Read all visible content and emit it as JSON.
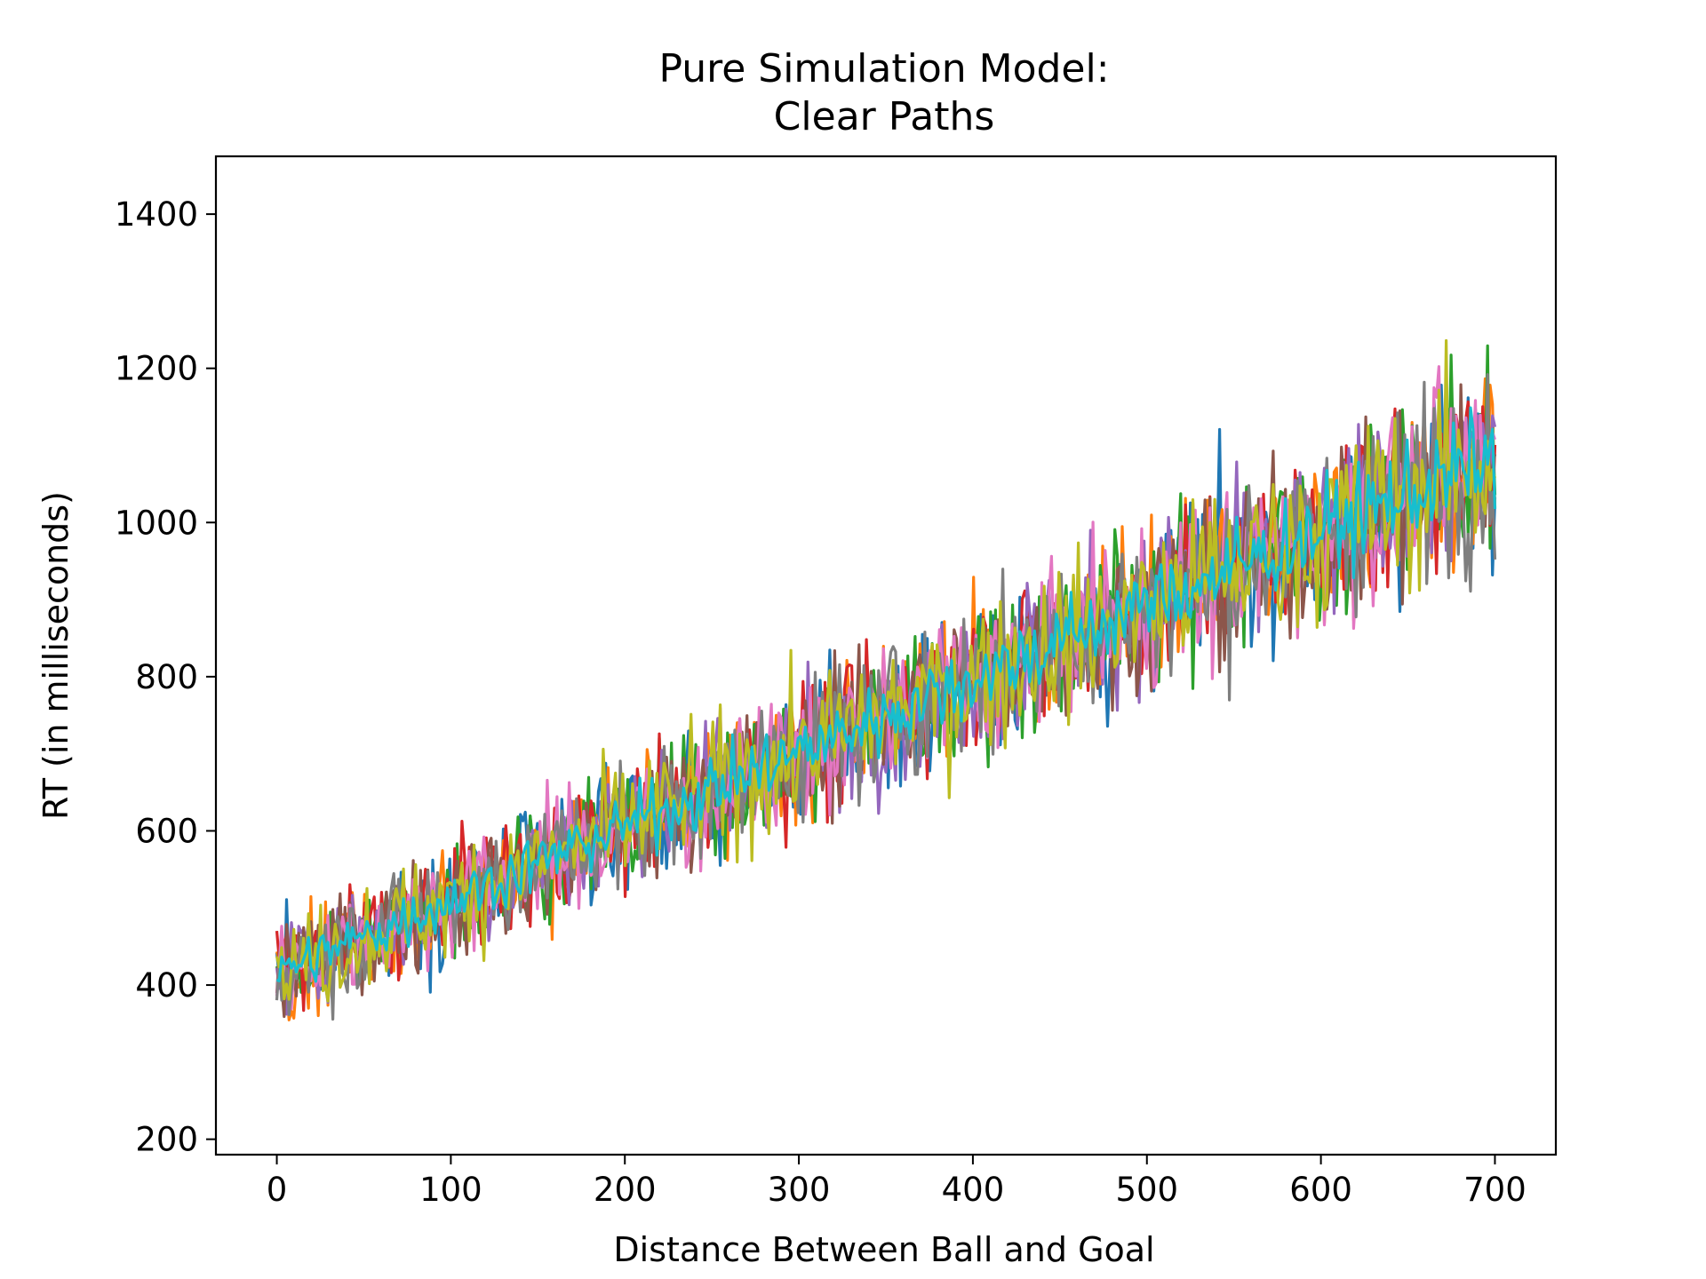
{
  "chart_data": {
    "type": "line",
    "title": "Pure Simulation Model:",
    "subtitle": "Clear Paths",
    "xlabel": "Distance Between Ball and Goal",
    "ylabel": "RT (in milliseconds)",
    "xlim": [
      -35,
      735
    ],
    "ylim": [
      180,
      1475
    ],
    "x_ticks": [
      0,
      100,
      200,
      300,
      400,
      500,
      600,
      700
    ],
    "y_ticks": [
      200,
      400,
      600,
      800,
      1000,
      1200,
      1400
    ],
    "x_range": [
      0,
      700
    ],
    "grid": false,
    "legend": "none",
    "series_colors": [
      "#1f77b4",
      "#ff7f0e",
      "#2ca02c",
      "#d62728",
      "#9467bd",
      "#8c564b",
      "#e377c2",
      "#7f7f7f",
      "#bcbd22",
      "#17becf"
    ],
    "trend": {
      "mean_at_x0": 415,
      "mean_at_x700": 1085,
      "spread_at_x0": 95,
      "spread_at_x700": 180
    },
    "series_count": 10
  }
}
